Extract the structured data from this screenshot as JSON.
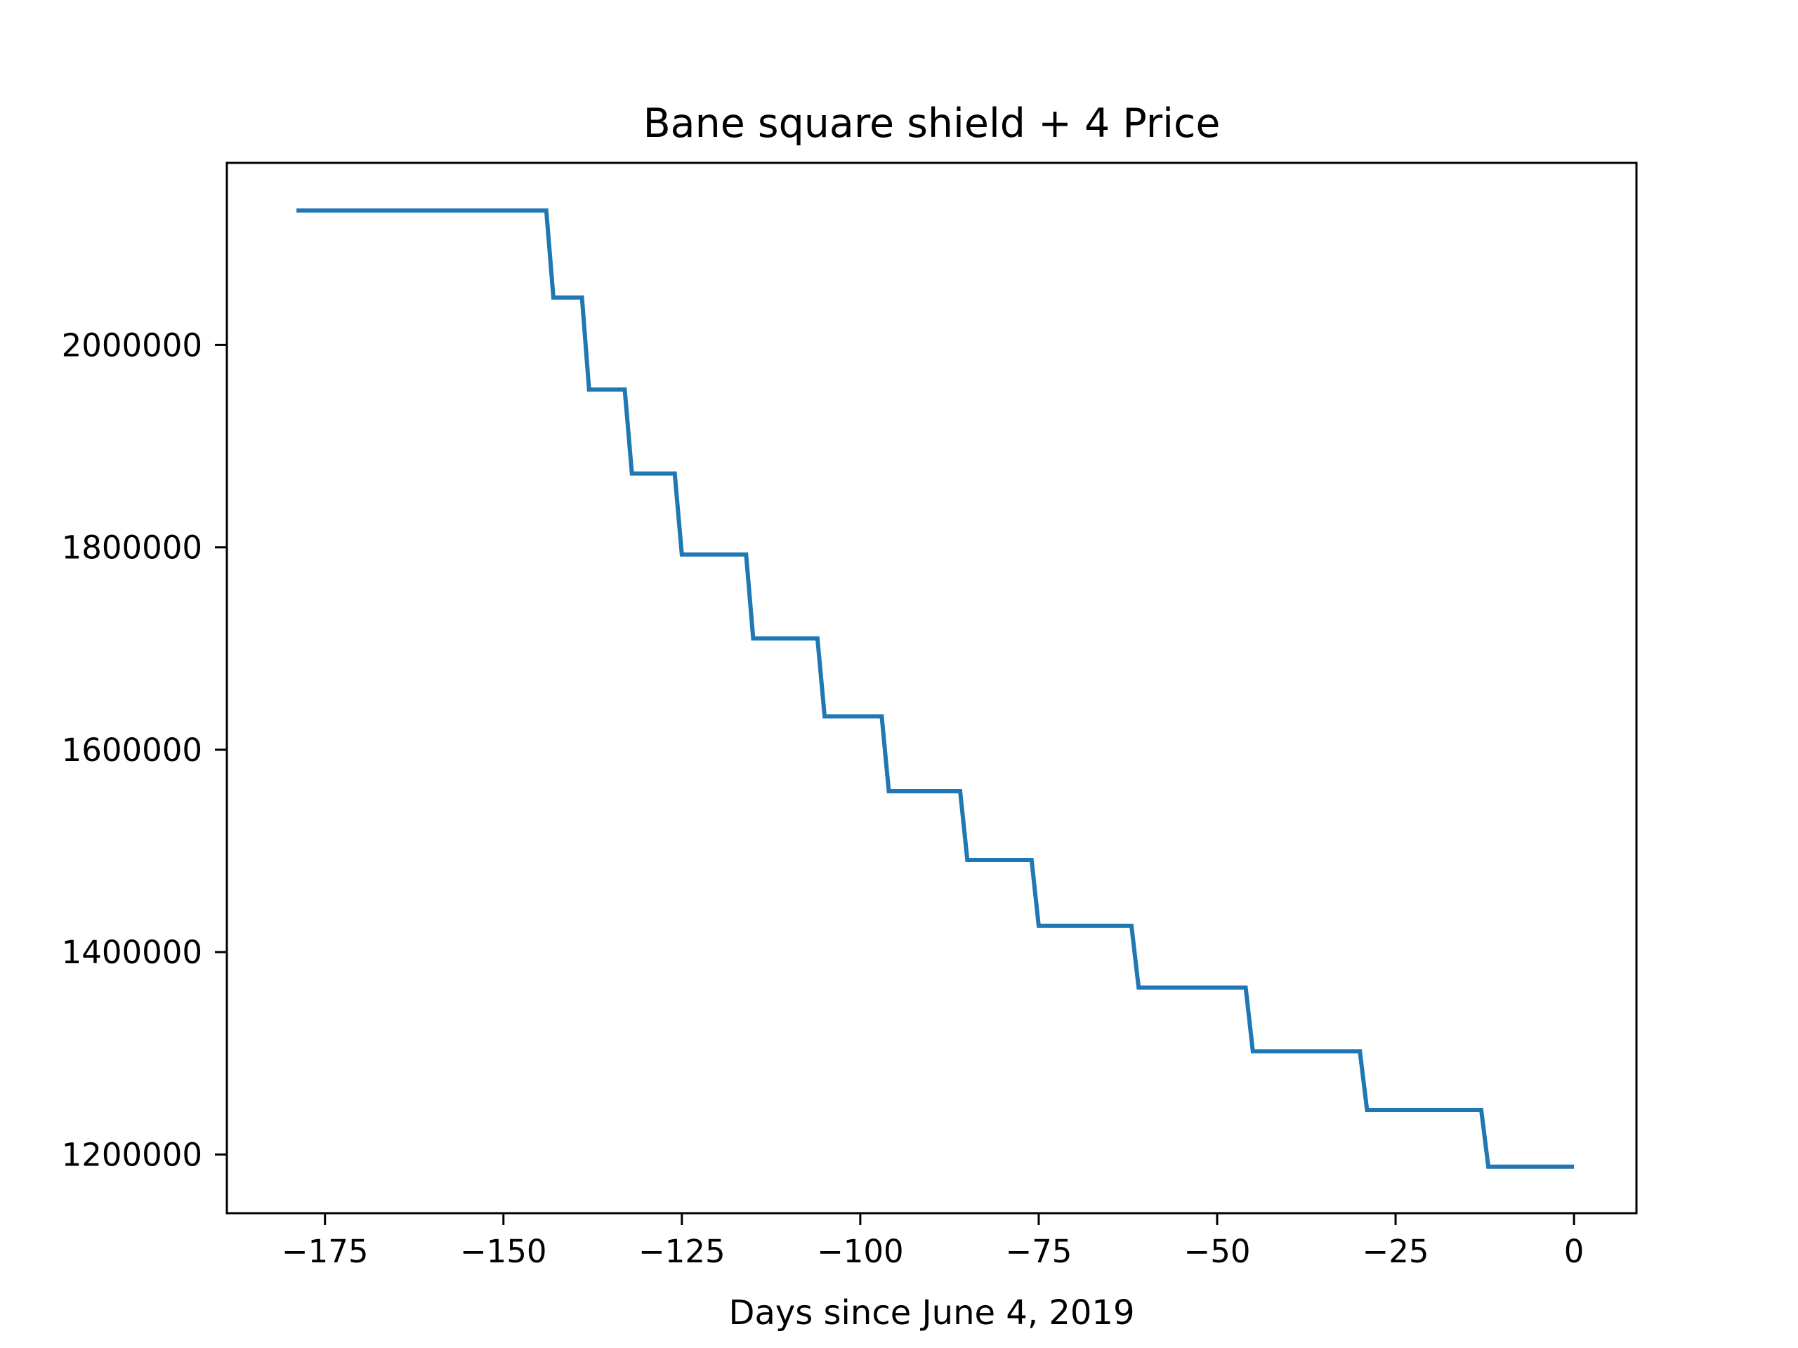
{
  "chart_data": {
    "type": "line",
    "title": "Bane square shield + 4 Price",
    "xlabel": "Days since June 4, 2019",
    "ylabel": "",
    "xlim": [
      -188.75,
      8.75
    ],
    "ylim": [
      1142000,
      2180000
    ],
    "grid": false,
    "legend": "none",
    "line_style": "step",
    "xticks": [
      -175,
      -150,
      -125,
      -100,
      -75,
      -50,
      -25,
      0
    ],
    "xtick_labels": [
      "−175",
      "−150",
      "−125",
      "−100",
      "−75",
      "−50",
      "−25",
      "0"
    ],
    "yticks": [
      1200000,
      1400000,
      1600000,
      1800000,
      2000000
    ],
    "ytick_labels": [
      "1200000",
      "1400000",
      "1600000",
      "1800000",
      "2000000"
    ],
    "colors": {
      "series": "#1f77b4",
      "axes": "#000000",
      "background": "#ffffff"
    },
    "series": [
      {
        "x": [
          -179,
          -144,
          -143,
          -139,
          -138,
          -133,
          -132,
          -126,
          -125,
          -116,
          -115,
          -106,
          -105,
          -97,
          -96,
          -86,
          -85,
          -76,
          -75,
          -62,
          -61,
          -46,
          -45,
          -30,
          -29,
          -13,
          -12,
          0
        ],
        "y": [
          2133000,
          2133000,
          2047000,
          2047000,
          1956000,
          1956000,
          1873000,
          1873000,
          1793000,
          1793000,
          1710000,
          1710000,
          1633000,
          1633000,
          1559000,
          1559000,
          1491000,
          1491000,
          1426000,
          1426000,
          1365000,
          1365000,
          1302000,
          1302000,
          1244000,
          1244000,
          1188000,
          1188000
        ]
      }
    ]
  }
}
